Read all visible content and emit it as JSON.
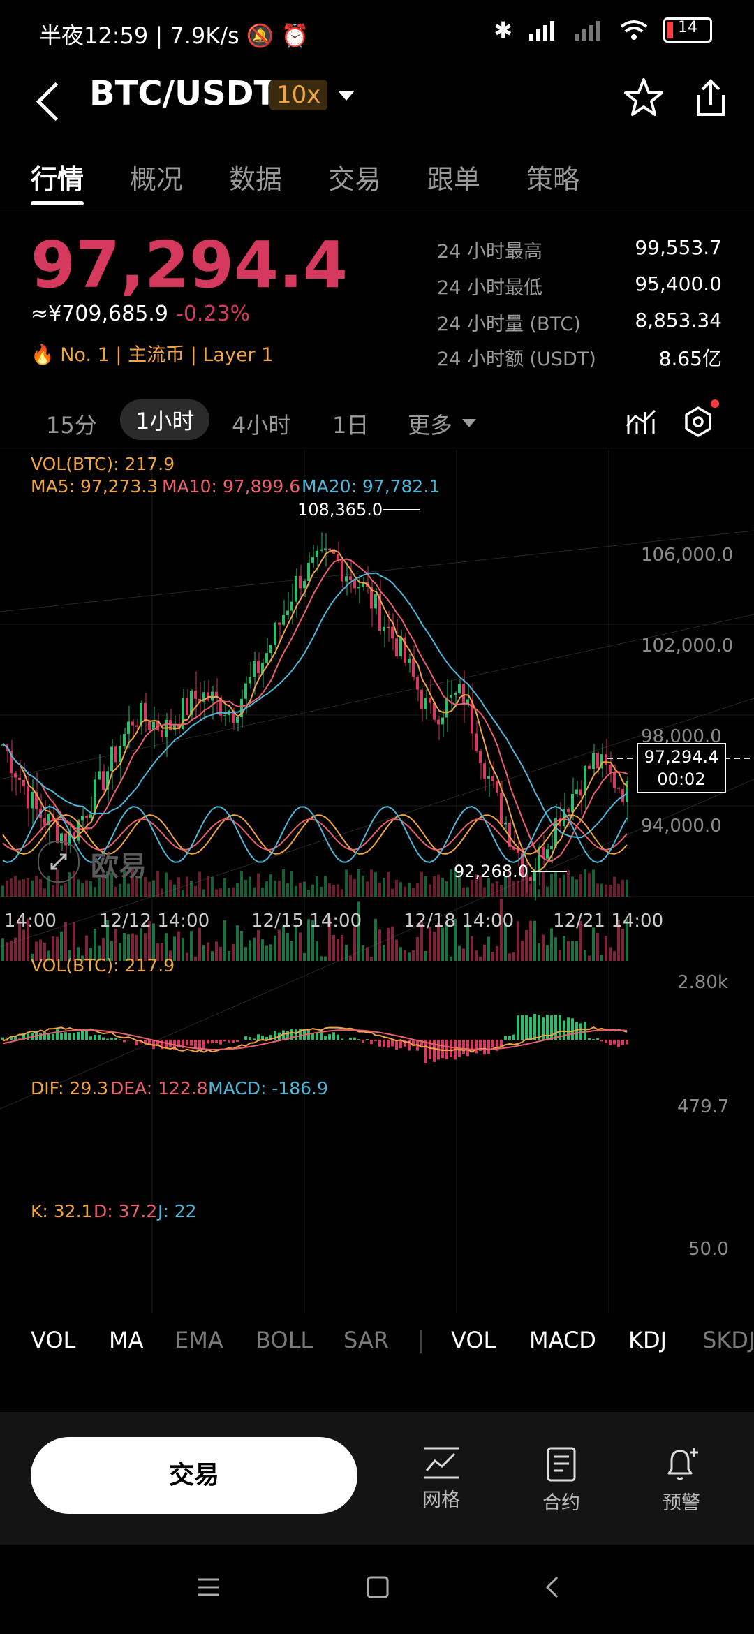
{
  "status": {
    "time": "半夜12:59",
    "net_speed": "7.9K/s",
    "battery": "14"
  },
  "header": {
    "pair": "BTC/USDT",
    "leverage": "10x"
  },
  "tabs": [
    "行情",
    "概况",
    "数据",
    "交易",
    "跟单",
    "策略"
  ],
  "price": {
    "last": "97,294.4",
    "cny": "≈¥709,685.9",
    "change": "-0.23%",
    "rank": "No. 1",
    "tag1": "主流币",
    "tag2": "Layer 1"
  },
  "stats": [
    {
      "label": "24 小时最高",
      "value": "99,553.7"
    },
    {
      "label": "24 小时最低",
      "value": "95,400.0"
    },
    {
      "label": "24 小时量 (BTC)",
      "value": "8,853.34"
    },
    {
      "label": "24 小时额 (USDT)",
      "value": "8.65亿"
    }
  ],
  "intervals": {
    "items": [
      "15分",
      "1小时",
      "4小时",
      "1日"
    ],
    "active": "1小时",
    "more": "更多"
  },
  "chart": {
    "legend_vol": "VOL(BTC): 217.9",
    "ma5": "MA5: 97,273.3",
    "ma10": "MA10: 97,899.6",
    "ma20": "MA20: 97,782.1",
    "price_ticks": [
      "106,000.0",
      "102,000.0",
      "98,000.0",
      "94,000.0"
    ],
    "high_label": "108,365.0",
    "low_label": "92,268.0",
    "current_price": "97,294.4",
    "countdown": "00:02",
    "date_ticks": [
      "14:00",
      "12/12 14:00",
      "12/15 14:00",
      "12/18 14:00",
      "12/21 14:00"
    ],
    "watermark": "欧易",
    "vol_legend": "VOL(BTC): 217.9",
    "vol_tick": "2.80k",
    "macd_dif": "DIF: 29.3",
    "macd_dea": "DEA: 122.8",
    "macd_val": "MACD: -186.9",
    "macd_tick": "479.7",
    "kdj_k": "K: 32.1",
    "kdj_d": "D: 37.2",
    "kdj_j": "J: 22",
    "kdj_tick": "50.0",
    "colors": {
      "up": "#2fbd6b",
      "down": "#d6395e",
      "ma5": "#f0a540",
      "ma10": "#e8606e",
      "ma20": "#4fb6d8"
    }
  },
  "chart_data": {
    "type": "line",
    "title": "BTC/USDT",
    "xlabel": "",
    "ylabel": "",
    "x": [
      "14:00",
      "12/12 14:00",
      "12/15 14:00",
      "12/18 14:00",
      "12/21 14:00"
    ],
    "series_price_path": [
      99500,
      96500,
      95200,
      97800,
      100800,
      100200,
      101800,
      101000,
      103500,
      107000,
      108000,
      106500,
      104000,
      100800,
      101800,
      97000,
      93500,
      96500,
      98800,
      97294.4
    ],
    "high": 108365.0,
    "low": 92268.0,
    "last": 97294.4,
    "ylim": [
      92000,
      109000
    ]
  },
  "indicators": {
    "main": [
      "VOL",
      "MA",
      "EMA",
      "BOLL",
      "SAR"
    ],
    "sub": [
      "VOL",
      "MACD",
      "KDJ",
      "SKDJ"
    ]
  },
  "actions": {
    "trade": "交易",
    "grid": "网格",
    "contract": "合约",
    "alert": "预警"
  }
}
